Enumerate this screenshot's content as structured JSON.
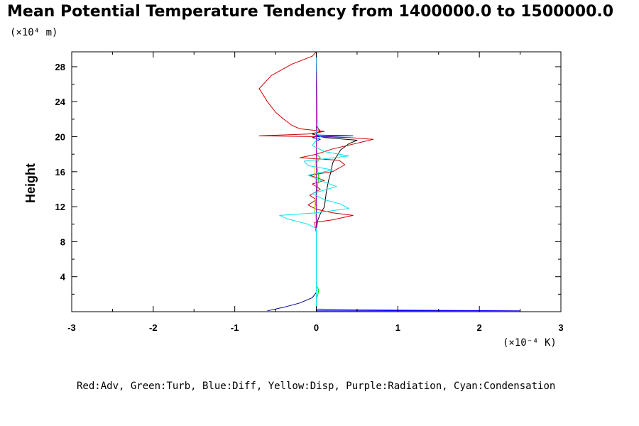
{
  "chart_data": {
    "type": "line",
    "title": "Mean Potential Temperature Tendency from 1400000.0 to 1500000.0",
    "ylabel": "Height",
    "xunit": "(×10⁻⁴ K)",
    "yunit": "(×10⁴ m)",
    "xlim": [
      -3,
      3
    ],
    "ylim": [
      0,
      29.7
    ],
    "xticks": [
      -3,
      -2,
      -1,
      0,
      1,
      2,
      3
    ],
    "yticks": [
      4,
      8,
      12,
      16,
      20,
      24,
      28
    ],
    "legend_text": "Red:Adv, Green:Turb, Blue:Diff, Yellow:Disp, Purple:Radiation, Cyan:Condensation",
    "series": [
      {
        "color": "#000000",
        "points": [
          [
            0,
            0.1
          ],
          [
            0.0,
            3.0
          ],
          [
            0.0,
            9.5
          ],
          [
            0.02,
            10.5
          ],
          [
            0.05,
            11.2
          ],
          [
            0.1,
            12.0
          ],
          [
            0.12,
            13.5
          ],
          [
            0.15,
            15.0
          ],
          [
            0.18,
            16.0
          ],
          [
            0.2,
            17.0
          ],
          [
            0.3,
            18.5
          ],
          [
            0.4,
            19.2
          ],
          [
            0.5,
            19.6
          ],
          [
            0.1,
            19.9
          ],
          [
            -0.05,
            20.3
          ],
          [
            0.05,
            20.6
          ],
          [
            0.0,
            21.2
          ],
          [
            0.0,
            29.7
          ]
        ]
      },
      {
        "color": "#cc0000",
        "points": [
          [
            0,
            0.1
          ],
          [
            0.0,
            9.0
          ],
          [
            -0.02,
            10.2
          ],
          [
            0.2,
            10.5
          ],
          [
            0.45,
            11.0
          ],
          [
            0.2,
            11.3
          ],
          [
            0.0,
            11.7
          ],
          [
            -0.1,
            12.2
          ],
          [
            0.0,
            12.8
          ],
          [
            -0.08,
            13.3
          ],
          [
            0.05,
            14.0
          ],
          [
            -0.05,
            14.6
          ],
          [
            0.1,
            15.0
          ],
          [
            -0.08,
            15.6
          ],
          [
            0.2,
            16.0
          ],
          [
            0.35,
            16.8
          ],
          [
            0.28,
            17.3
          ],
          [
            -0.2,
            17.6
          ],
          [
            0.0,
            18.0
          ],
          [
            0.2,
            18.6
          ],
          [
            0.7,
            19.7
          ],
          [
            0.4,
            19.9
          ],
          [
            0.0,
            20.0
          ],
          [
            -0.7,
            20.1
          ],
          [
            -0.1,
            20.3
          ],
          [
            0.1,
            20.6
          ],
          [
            -0.2,
            20.9
          ],
          [
            -0.3,
            21.3
          ],
          [
            -0.4,
            22.0
          ],
          [
            -0.5,
            22.8
          ],
          [
            -0.6,
            24.0
          ],
          [
            -0.7,
            25.5
          ],
          [
            -0.55,
            27.0
          ],
          [
            -0.3,
            28.3
          ],
          [
            -0.05,
            29.2
          ],
          [
            0.0,
            29.7
          ]
        ]
      },
      {
        "color": "#00cc00",
        "points": [
          [
            0,
            0.1
          ],
          [
            0.0,
            1.5
          ],
          [
            0.02,
            2.0
          ],
          [
            0.03,
            2.5
          ],
          [
            0.0,
            3.0
          ],
          [
            0.0,
            10.5
          ],
          [
            -0.02,
            11.5
          ],
          [
            0.0,
            13.0
          ],
          [
            0.03,
            15.5
          ],
          [
            0.0,
            17.0
          ],
          [
            0.05,
            17.6
          ],
          [
            0.0,
            18.0
          ],
          [
            0.0,
            29.7
          ]
        ]
      },
      {
        "color": "#00008b",
        "points": [
          [
            -0.6,
            0.1
          ],
          [
            -0.4,
            0.5
          ],
          [
            -0.2,
            1.0
          ],
          [
            -0.05,
            1.6
          ],
          [
            0.0,
            2.2
          ],
          [
            0.0,
            29.7
          ]
        ]
      },
      {
        "color": "#0000ff",
        "points": [
          [
            0,
            0.1
          ],
          [
            2.5,
            0.1
          ],
          [
            0.5,
            0.2
          ],
          [
            0.0,
            0.3
          ],
          [
            0.0,
            18.5
          ],
          [
            0.0,
            19.5
          ],
          [
            0.05,
            19.7
          ],
          [
            -0.05,
            19.9
          ],
          [
            0.0,
            20.0
          ],
          [
            0.45,
            20.1
          ],
          [
            0.0,
            20.2
          ],
          [
            0.0,
            29.7
          ]
        ]
      },
      {
        "color": "#dddd00",
        "points": [
          [
            0,
            0.1
          ],
          [
            0.0,
            10.0
          ],
          [
            -0.02,
            12.0
          ],
          [
            0.0,
            14.0
          ],
          [
            -0.02,
            16.0
          ],
          [
            0.0,
            18.0
          ],
          [
            0.0,
            29.7
          ]
        ]
      },
      {
        "color": "#aa00aa",
        "points": [
          [
            0,
            0.1
          ],
          [
            0.0,
            29.7
          ]
        ]
      },
      {
        "color": "#00e5ee",
        "points": [
          [
            0,
            0.1
          ],
          [
            0.0,
            9.5
          ],
          [
            -0.1,
            10.0
          ],
          [
            -0.35,
            10.6
          ],
          [
            -0.45,
            11.0
          ],
          [
            0.0,
            11.3
          ],
          [
            0.4,
            11.8
          ],
          [
            0.3,
            12.3
          ],
          [
            0.1,
            12.8
          ],
          [
            -0.05,
            13.5
          ],
          [
            0.25,
            14.3
          ],
          [
            0.05,
            15.0
          ],
          [
            -0.1,
            15.6
          ],
          [
            0.2,
            16.2
          ],
          [
            -0.1,
            16.7
          ],
          [
            -0.15,
            17.2
          ],
          [
            0.4,
            17.8
          ],
          [
            0.1,
            18.3
          ],
          [
            -0.05,
            19.0
          ],
          [
            0.0,
            19.6
          ],
          [
            0.05,
            20.0
          ],
          [
            0.0,
            20.5
          ],
          [
            0.02,
            21.0
          ],
          [
            0.0,
            29.7
          ]
        ]
      }
    ]
  }
}
